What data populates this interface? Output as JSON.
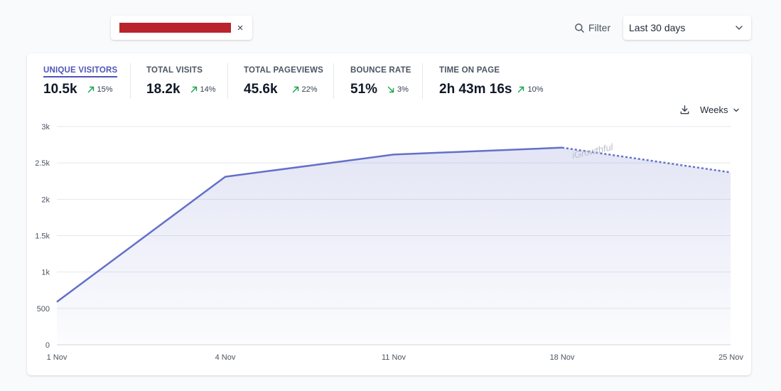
{
  "header": {
    "filter_chip": {
      "close_symbol": "×",
      "redaction_color": "#b9232c"
    },
    "filter_button": {
      "label": "Filter",
      "icon": "search-icon"
    },
    "date_range": {
      "selected": "Last 30 days",
      "icon": "chevron-down-icon"
    }
  },
  "metrics": [
    {
      "label": "UNIQUE VISITORS",
      "value": "10.5k",
      "change": "15%",
      "trend": "up",
      "active": true
    },
    {
      "label": "TOTAL VISITS",
      "value": "18.2k",
      "change": "14%",
      "trend": "up",
      "active": false
    },
    {
      "label": "TOTAL PAGEVIEWS",
      "value": "45.6k",
      "change": "22%",
      "trend": "up",
      "active": false
    },
    {
      "label": "BOUNCE RATE",
      "value": "51%",
      "change": "3%",
      "trend": "down",
      "active": false
    },
    {
      "label": "TIME ON PAGE",
      "value": "2h 43m 16s",
      "change": "10%",
      "trend": "up",
      "active": false
    }
  ],
  "chart_controls": {
    "download_icon": "download-icon",
    "interval": {
      "selected": "Weeks",
      "icon": "chevron-down-icon"
    }
  },
  "colors": {
    "accent": "#4f55b8",
    "line": "#6470c8",
    "trend_up": "#16a34a",
    "trend_down": "#16a34a"
  },
  "chart_data": {
    "type": "area",
    "title": "",
    "xlabel": "",
    "ylabel": "",
    "categories": [
      "1 Nov",
      "4 Nov",
      "11 Nov",
      "18 Nov",
      "25 Nov"
    ],
    "values": [
      590,
      2310,
      2615,
      2710,
      2370
    ],
    "incomplete_last_segment": true,
    "ylim": [
      0,
      3000
    ],
    "y_ticks": [
      0,
      500,
      1000,
      1500,
      2000,
      2500,
      3000
    ],
    "y_tick_labels": [
      "0",
      "500",
      "1k",
      "1.5k",
      "2k",
      "2.5k",
      "3k"
    ],
    "grid": true,
    "legend": "none",
    "watermark": "iGrowthful"
  }
}
